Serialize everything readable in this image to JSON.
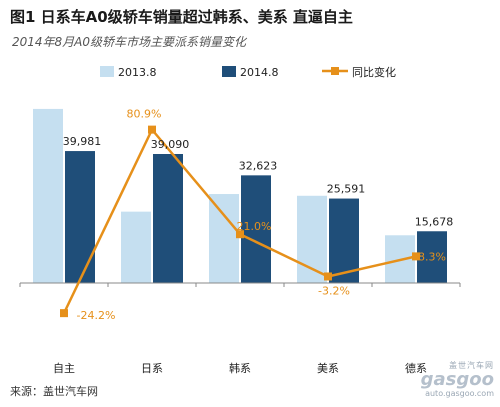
{
  "header": {
    "title": "图1  日系车A0级轿车销量超过韩系、美系 直逼自主",
    "subtitle": "2014年8月A0级轿车市场主要派系销量变化"
  },
  "footer": {
    "source": "来源：盖世汽车网"
  },
  "watermark": {
    "cn": "盖世汽车网",
    "logo": "gasgoo",
    "url": "auto.gasgoo.com"
  },
  "colors": {
    "bar2013": "#c5dff0",
    "bar2014": "#1f4e79",
    "line": "#e6901a",
    "axis": "#888888"
  },
  "chart_data": {
    "type": "bar",
    "categories": [
      "自主",
      "日系",
      "韩系",
      "美系",
      "德系"
    ],
    "series": [
      {
        "name": "2013.8",
        "values": [
          52750,
          21620,
          26960,
          26430,
          14460
        ]
      },
      {
        "name": "2014.8",
        "values": [
          39981,
          39090,
          32623,
          25591,
          15678
        ]
      }
    ],
    "line_series": {
      "name": "同比变化",
      "values": [
        -24.2,
        80.9,
        21.0,
        -3.2,
        8.3
      ],
      "labels": [
        "-24.2%",
        "80.9%",
        "21.0%",
        "-3.2%",
        "8.3%"
      ]
    },
    "bar_labels": [
      "39,981",
      "39,090",
      "32,623",
      "25,591",
      "15,678"
    ],
    "ylim": [
      0,
      60000
    ],
    "y2lim": [
      -35,
      95
    ],
    "legend_position": "top",
    "grid": false
  }
}
